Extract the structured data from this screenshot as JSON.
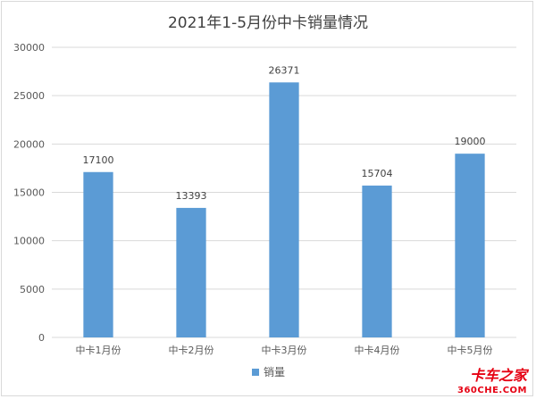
{
  "chart_data": {
    "type": "bar",
    "title": "2021年1-5月份中卡销量情况",
    "categories": [
      "中卡1月份",
      "中卡2月份",
      "中卡3月份",
      "中卡4月份",
      "中卡5月份"
    ],
    "series": [
      {
        "name": "销量",
        "values": [
          17100,
          13393,
          26371,
          15704,
          19000
        ],
        "color": "#5B9BD5"
      }
    ],
    "ylim": [
      0,
      30000
    ],
    "yticks": [
      0,
      5000,
      10000,
      15000,
      20000,
      25000,
      30000
    ],
    "grid": true,
    "legend_position": "bottom",
    "data_labels": true,
    "gridline_color": "#d9d9d9",
    "axis_color": "#d9d9d9"
  },
  "watermark": {
    "line1": "卡车之家",
    "line2": "360CHE.COM",
    "color": "#e60012"
  }
}
